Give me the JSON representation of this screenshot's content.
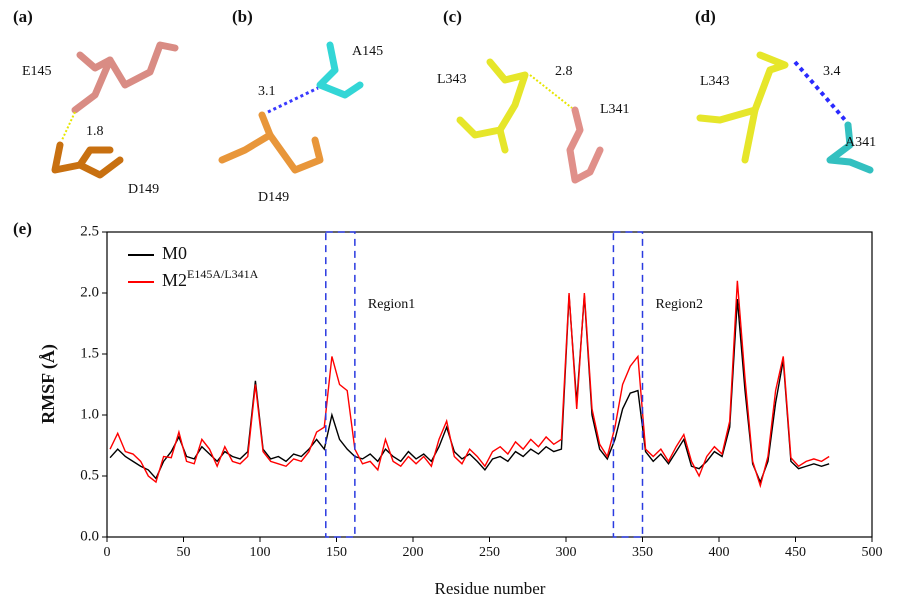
{
  "panels": [
    {
      "label": "(a)",
      "texts": [
        "E145",
        "1.8",
        "D149"
      ]
    },
    {
      "label": "(b)",
      "texts": [
        "A145",
        "3.1",
        "D149"
      ]
    },
    {
      "label": "(c)",
      "texts": [
        "L343",
        "2.8",
        "L341"
      ]
    },
    {
      "label": "(d)",
      "texts": [
        "L343",
        "3.4",
        "A341"
      ]
    }
  ],
  "chart_data": {
    "type": "line",
    "label": "(e)",
    "xlabel": "Residue number",
    "ylabel": "RMSF (Å)",
    "xlim": [
      0,
      500
    ],
    "ylim": [
      0,
      2.5
    ],
    "xticks": [
      0,
      50,
      100,
      150,
      200,
      250,
      300,
      350,
      400,
      450,
      500
    ],
    "yticks": [
      {
        "value": 0,
        "label": "0.0"
      },
      0.5,
      {
        "value": 1,
        "label": "1.0"
      },
      1.5,
      {
        "value": 2,
        "label": "2.0"
      },
      2.5
    ],
    "legend": "upper left",
    "annotations": [
      {
        "text": "Region1",
        "x": [
          143,
          162
        ]
      },
      {
        "text": "Region2",
        "x": [
          331,
          350
        ]
      }
    ],
    "x": [
      2,
      7,
      12,
      17,
      22,
      27,
      32,
      37,
      42,
      47,
      52,
      57,
      62,
      67,
      72,
      77,
      82,
      87,
      92,
      97,
      102,
      107,
      112,
      117,
      122,
      127,
      132,
      137,
      142,
      147,
      152,
      157,
      162,
      167,
      172,
      177,
      182,
      187,
      192,
      197,
      202,
      207,
      212,
      217,
      222,
      227,
      232,
      237,
      242,
      247,
      252,
      257,
      262,
      267,
      272,
      277,
      282,
      287,
      292,
      297,
      302,
      307,
      312,
      317,
      322,
      327,
      332,
      337,
      342,
      347,
      352,
      357,
      362,
      367,
      372,
      377,
      382,
      387,
      392,
      397,
      402,
      407,
      412,
      417,
      422,
      427,
      432,
      437,
      442,
      447,
      452,
      457,
      462,
      467,
      472
    ],
    "series": [
      {
        "name": "M0",
        "color": "#000000",
        "values": [
          0.65,
          0.72,
          0.66,
          0.62,
          0.58,
          0.55,
          0.48,
          0.62,
          0.7,
          0.82,
          0.66,
          0.64,
          0.74,
          0.68,
          0.62,
          0.7,
          0.66,
          0.64,
          0.7,
          1.28,
          0.72,
          0.64,
          0.66,
          0.62,
          0.68,
          0.66,
          0.72,
          0.8,
          0.72,
          1.0,
          0.8,
          0.72,
          0.66,
          0.64,
          0.68,
          0.62,
          0.72,
          0.66,
          0.62,
          0.7,
          0.64,
          0.68,
          0.62,
          0.74,
          0.9,
          0.7,
          0.64,
          0.68,
          0.62,
          0.55,
          0.64,
          0.66,
          0.62,
          0.7,
          0.66,
          0.72,
          0.68,
          0.74,
          0.7,
          0.72,
          1.98,
          1.1,
          1.98,
          1.0,
          0.72,
          0.64,
          0.8,
          1.05,
          1.18,
          1.2,
          0.7,
          0.62,
          0.68,
          0.6,
          0.7,
          0.8,
          0.58,
          0.56,
          0.62,
          0.7,
          0.66,
          0.9,
          1.95,
          1.2,
          0.6,
          0.45,
          0.62,
          1.1,
          1.45,
          0.62,
          0.56,
          0.58,
          0.6,
          0.58,
          0.6
        ]
      },
      {
        "name": "M2",
        "name_sup": "E145A/L341A",
        "color": "#ff0000",
        "values": [
          0.72,
          0.85,
          0.7,
          0.68,
          0.62,
          0.5,
          0.45,
          0.66,
          0.65,
          0.86,
          0.62,
          0.6,
          0.8,
          0.72,
          0.58,
          0.74,
          0.62,
          0.6,
          0.66,
          1.25,
          0.7,
          0.62,
          0.6,
          0.58,
          0.64,
          0.62,
          0.7,
          0.86,
          0.9,
          1.48,
          1.25,
          1.2,
          0.72,
          0.6,
          0.62,
          0.55,
          0.8,
          0.62,
          0.58,
          0.66,
          0.6,
          0.66,
          0.58,
          0.8,
          0.95,
          0.66,
          0.6,
          0.72,
          0.66,
          0.58,
          0.7,
          0.74,
          0.68,
          0.78,
          0.72,
          0.8,
          0.74,
          0.82,
          0.76,
          0.8,
          2.0,
          1.05,
          2.0,
          1.05,
          0.76,
          0.66,
          0.9,
          1.25,
          1.4,
          1.48,
          0.72,
          0.66,
          0.72,
          0.62,
          0.74,
          0.84,
          0.62,
          0.5,
          0.66,
          0.74,
          0.68,
          0.95,
          2.1,
          1.3,
          0.62,
          0.42,
          0.66,
          1.2,
          1.48,
          0.65,
          0.58,
          0.62,
          0.64,
          0.62,
          0.66
        ]
      }
    ]
  }
}
